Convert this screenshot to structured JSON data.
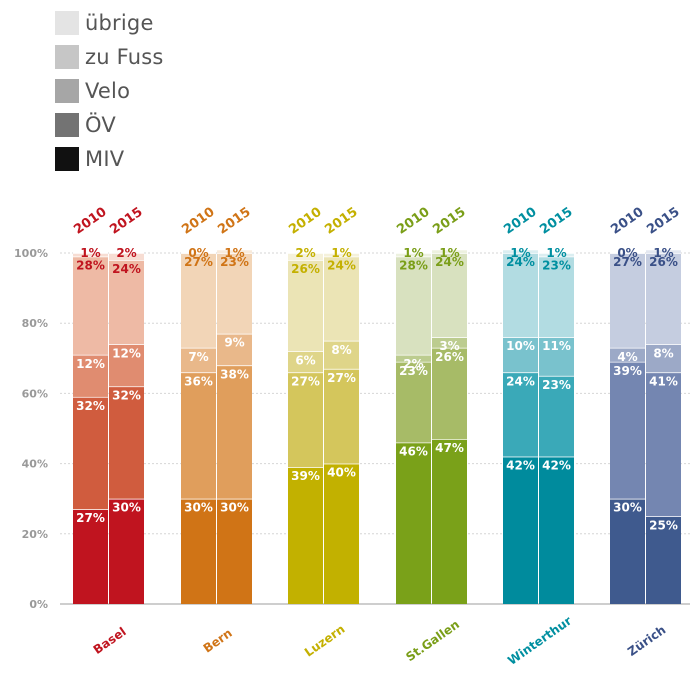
{
  "legend": [
    {
      "key": "uebrige",
      "label": "übrige",
      "color": "#e4e4e4"
    },
    {
      "key": "zu_fuss",
      "label": "zu Fuss",
      "color": "#c6c6c6"
    },
    {
      "key": "velo",
      "label": "Velo",
      "color": "#a6a6a6"
    },
    {
      "key": "oev",
      "label": "ÖV",
      "color": "#737373"
    },
    {
      "key": "miv",
      "label": "MIV",
      "color": "#111111"
    }
  ],
  "chart_data": {
    "type": "bar",
    "stacked": true,
    "percent": true,
    "ylim": [
      0,
      100
    ],
    "yticks": [
      "0%",
      "20%",
      "40%",
      "60%",
      "80%",
      "100%"
    ],
    "grid": true,
    "stack_order": [
      "MIV",
      "ÖV",
      "Velo",
      "zu Fuss",
      "übrige"
    ],
    "groups": [
      {
        "name": "Basel",
        "color": "#c0141f",
        "shades": [
          "#c0141f",
          "#d05c3e",
          "#e08c70",
          "#eebaa5",
          "#f7ddd3"
        ],
        "bars": [
          {
            "year": "2010",
            "values": [
              27,
              32,
              12,
              28,
              1
            ]
          },
          {
            "year": "2015",
            "values": [
              30,
              32,
              12,
              24,
              2
            ]
          }
        ]
      },
      {
        "name": "Bern",
        "color": "#d07416",
        "shades": [
          "#d07416",
          "#e09e5c",
          "#e9b88a",
          "#f2d5b7",
          "#f8ebdc"
        ],
        "bars": [
          {
            "year": "2010",
            "values": [
              30,
              36,
              7,
              27,
              0
            ]
          },
          {
            "year": "2015",
            "values": [
              30,
              38,
              9,
              23,
              1
            ]
          }
        ]
      },
      {
        "name": "Luzern",
        "color": "#c4b000",
        "shades": [
          "#c2b100",
          "#d4c65c",
          "#dfd589",
          "#ebe4b5",
          "#f5f1db"
        ],
        "bars": [
          {
            "year": "2010",
            "values": [
              39,
              27,
              6,
              26,
              2
            ]
          },
          {
            "year": "2015",
            "values": [
              40,
              27,
              8,
              24,
              1
            ]
          }
        ]
      },
      {
        "name": "St.Gallen",
        "color": "#7a9e18",
        "shades": [
          "#7aa119",
          "#a7bb67",
          "#bccc8f",
          "#d8e1bf",
          "#edf1df"
        ],
        "bars": [
          {
            "year": "2010",
            "values": [
              46,
              23,
              2,
              28,
              1
            ]
          },
          {
            "year": "2015",
            "values": [
              47,
              26,
              3,
              24,
              1
            ]
          }
        ]
      },
      {
        "name": "Winterthur",
        "color": "#008fa0",
        "shades": [
          "#008b9d",
          "#3aa9b8",
          "#79c2cd",
          "#b2dce2",
          "#dbeef1"
        ],
        "bars": [
          {
            "year": "2010",
            "values": [
              42,
              24,
              10,
              24,
              1
            ]
          },
          {
            "year": "2015",
            "values": [
              42,
              23,
              11,
              23,
              1
            ]
          }
        ]
      },
      {
        "name": "Zürich",
        "color": "#3a5087",
        "shades": [
          "#3f5a8e",
          "#7486b1",
          "#9ca9c7",
          "#c5cde0",
          "#e3e7f0"
        ],
        "bars": [
          {
            "year": "2010",
            "values": [
              30,
              39,
              4,
              27,
              0
            ]
          },
          {
            "year": "2015",
            "values": [
              25,
              41,
              8,
              26,
              1
            ]
          }
        ]
      }
    ]
  }
}
